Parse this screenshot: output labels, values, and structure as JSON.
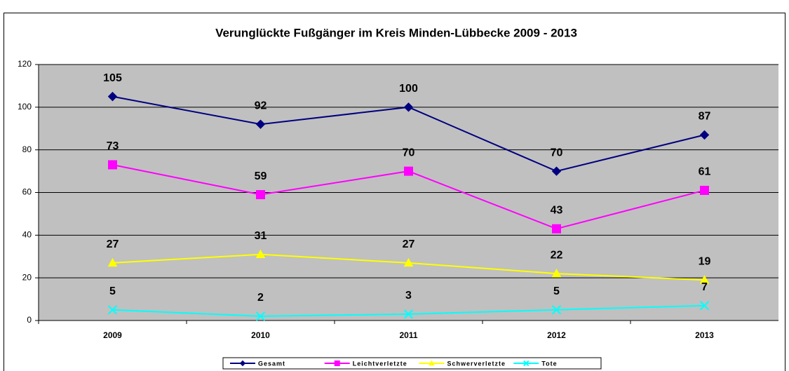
{
  "chart_data": {
    "type": "line",
    "title": "Verunglückte Fußgänger im Kreis Minden-Lübbecke 2009 - 2013",
    "categories": [
      "2009",
      "2010",
      "2011",
      "2012",
      "2013"
    ],
    "series": [
      {
        "name": "Gesamt",
        "color": "#000080",
        "marker": "diamond",
        "values": [
          105,
          92,
          100,
          70,
          87
        ]
      },
      {
        "name": "Leichtverletzte",
        "color": "#ff00ff",
        "marker": "square",
        "values": [
          73,
          59,
          70,
          43,
          61
        ]
      },
      {
        "name": "Schwerverletzte",
        "color": "#ffff00",
        "marker": "triangle",
        "values": [
          27,
          31,
          27,
          22,
          19
        ]
      },
      {
        "name": "Tote",
        "color": "#00ffff",
        "marker": "x",
        "values": [
          5,
          2,
          3,
          5,
          7
        ]
      }
    ],
    "ylim": [
      0,
      120
    ],
    "yticks": [
      0,
      20,
      40,
      60,
      80,
      100,
      120
    ],
    "grid": true,
    "legend": "bottom"
  }
}
